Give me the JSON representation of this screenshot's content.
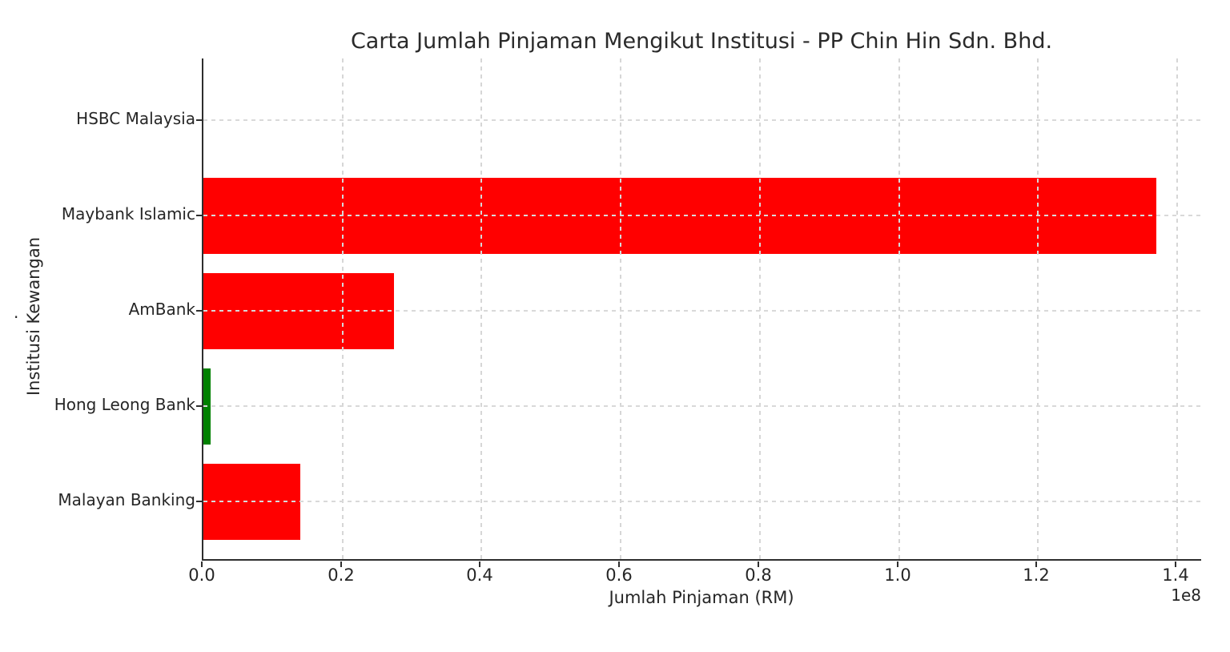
{
  "chart_data": {
    "type": "bar",
    "orientation": "horizontal",
    "title": "Carta Jumlah Pinjaman Mengikut Institusi - PP Chin Hin Sdn. Bhd.",
    "xlabel": "Jumlah Pinjaman (RM)",
    "ylabel": "Institusi Kewangan",
    "categories": [
      "HSBC Malaysia",
      "Maybank Islamic",
      "AmBank",
      "Hong Leong Bank",
      "Malayan Banking"
    ],
    "values": [
      0,
      137000000,
      27400000,
      1000000,
      13900000
    ],
    "bar_colors": [
      "#ff0000",
      "#ff0000",
      "#ff0000",
      "#008000",
      "#ff0000"
    ],
    "x_ticks": [
      0.0,
      0.2,
      0.4,
      0.6,
      0.8,
      1.0,
      1.2,
      1.4
    ],
    "x_tick_labels": [
      "0.0",
      "0.2",
      "0.4",
      "0.6",
      "0.8",
      "1.0",
      "1.2",
      "1.4"
    ],
    "x_scale_offset": "1e8",
    "xlim": [
      0,
      143700000
    ],
    "grid": true,
    "grid_style": "dashed",
    "legend_position": "none"
  },
  "decor": {
    "stray_mark": "."
  },
  "colors": {
    "bar_red": "#ff0000",
    "bar_green": "#008000",
    "grid": "#d6d6d6",
    "spine": "#2e2e2e",
    "text": "#262626",
    "background": "#ffffff"
  }
}
